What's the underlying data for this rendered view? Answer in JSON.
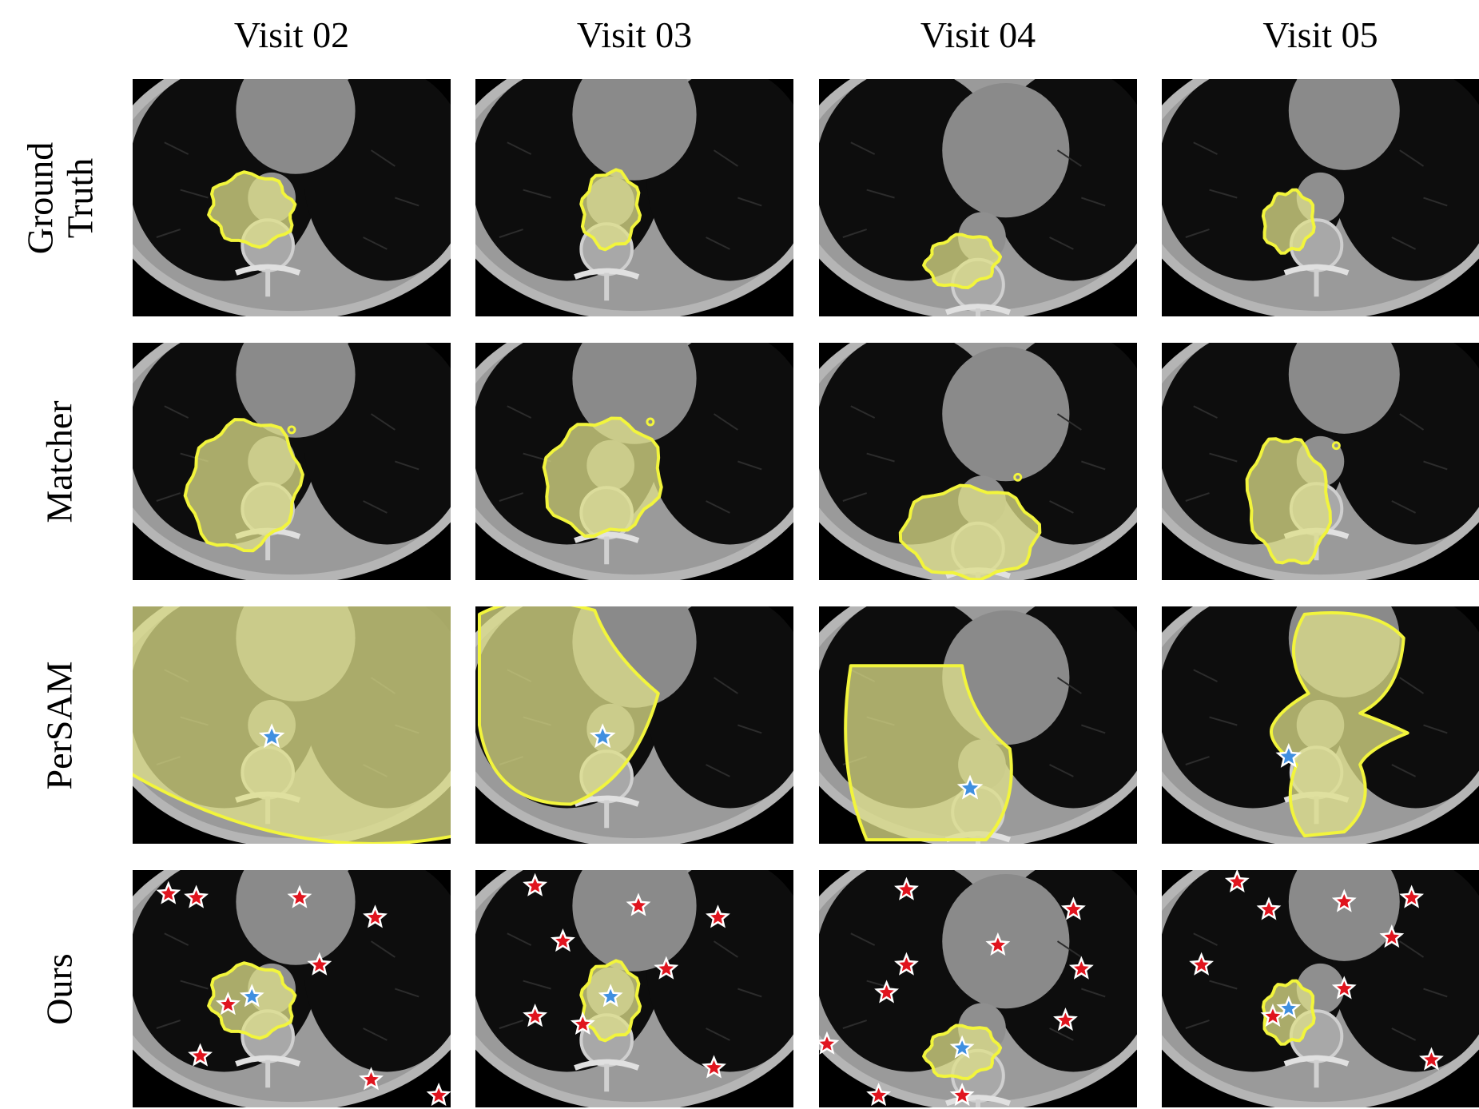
{
  "columns": [
    "Visit 02",
    "Visit 03",
    "Visit 04",
    "Visit 05"
  ],
  "rows": [
    {
      "label_lines": [
        "Ground",
        "Truth"
      ],
      "id": "ground-truth"
    },
    {
      "label_lines": [
        "Matcher"
      ],
      "id": "matcher"
    },
    {
      "label_lines": [
        "PerSAM"
      ],
      "id": "persam"
    },
    {
      "label_lines": [
        "Ours"
      ],
      "id": "ours"
    }
  ],
  "colors": {
    "mask_outline": "#f2f53c",
    "mask_fill": "#dfe08a",
    "positive_point": "#3f8fe0",
    "negative_point": "#e0141e",
    "background": "#000000",
    "lung": "#0d0d0d",
    "tissue": "#8a8a8a"
  },
  "icons": [
    "blue-star-icon",
    "red-star-icon"
  ]
}
